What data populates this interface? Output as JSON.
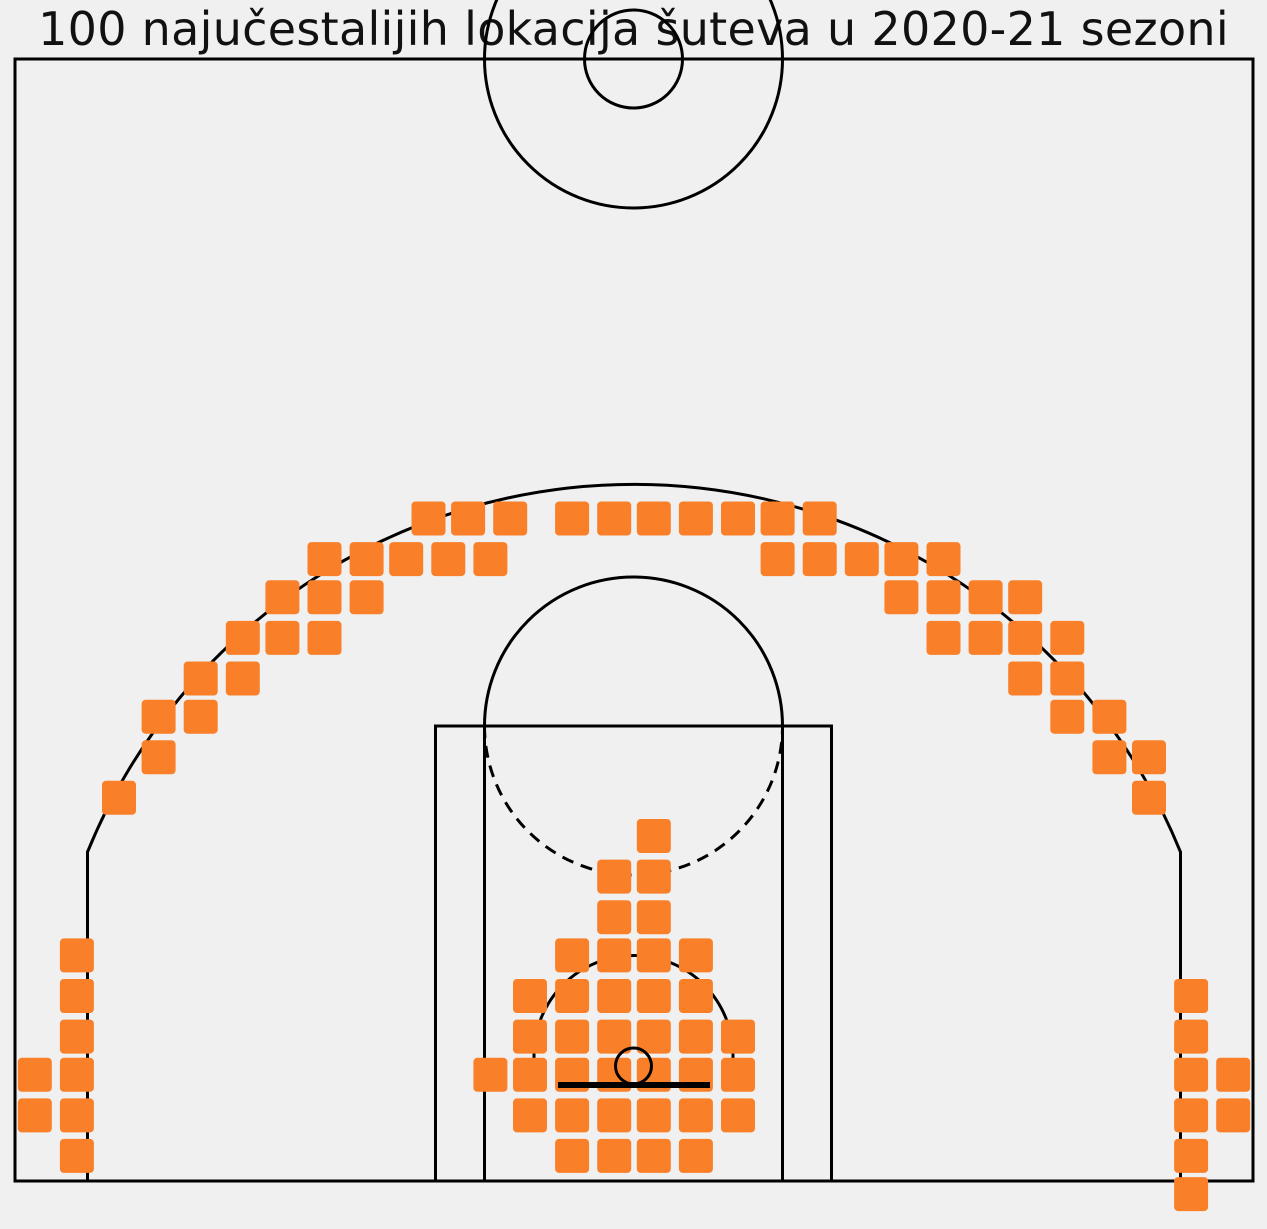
{
  "chart_data": {
    "type": "scatter",
    "title": "100 najučestalijih lokacija šuteva u 2020-21 sezoni",
    "xlabel": "",
    "ylabel": "",
    "marker": "rounded-square",
    "grid": false,
    "legend": "none",
    "xlim": [
      -250,
      250
    ],
    "ylim": [
      -47.5,
      422.5
    ],
    "bin_size_ft": 1.67,
    "colors": {
      "marker": "#f97f29",
      "court_lines": "#000000",
      "background": "#f0f0f0"
    },
    "points": [
      [
        -83,
        230
      ],
      [
        -67,
        230
      ],
      [
        -50,
        230
      ],
      [
        -25,
        230
      ],
      [
        -8,
        230
      ],
      [
        8,
        230
      ],
      [
        25,
        230
      ],
      [
        42,
        230
      ],
      [
        58,
        230
      ],
      [
        75,
        230
      ],
      [
        -125,
        213
      ],
      [
        -108,
        213
      ],
      [
        -92,
        213
      ],
      [
        -75,
        213
      ],
      [
        -58,
        213
      ],
      [
        58,
        213
      ],
      [
        75,
        213
      ],
      [
        92,
        213
      ],
      [
        108,
        213
      ],
      [
        125,
        213
      ],
      [
        -142,
        197
      ],
      [
        -125,
        197
      ],
      [
        -108,
        197
      ],
      [
        108,
        197
      ],
      [
        125,
        197
      ],
      [
        142,
        197
      ],
      [
        158,
        197
      ],
      [
        -158,
        180
      ],
      [
        -142,
        180
      ],
      [
        -125,
        180
      ],
      [
        125,
        180
      ],
      [
        142,
        180
      ],
      [
        158,
        180
      ],
      [
        175,
        180
      ],
      [
        -175,
        163
      ],
      [
        -158,
        163
      ],
      [
        158,
        163
      ],
      [
        175,
        163
      ],
      [
        -192,
        147
      ],
      [
        -175,
        147
      ],
      [
        175,
        147
      ],
      [
        192,
        147
      ],
      [
        -192,
        130
      ],
      [
        192,
        130
      ],
      [
        208,
        130
      ],
      [
        -208,
        113
      ],
      [
        208,
        113
      ],
      [
        8,
        97
      ],
      [
        -8,
        80
      ],
      [
        8,
        80
      ],
      [
        -8,
        63
      ],
      [
        8,
        63
      ],
      [
        -25,
        47
      ],
      [
        -8,
        47
      ],
      [
        8,
        47
      ],
      [
        25,
        47
      ],
      [
        -42,
        30
      ],
      [
        -25,
        30
      ],
      [
        -8,
        30
      ],
      [
        8,
        30
      ],
      [
        25,
        30
      ],
      [
        -42,
        13
      ],
      [
        -25,
        13
      ],
      [
        -8,
        13
      ],
      [
        8,
        13
      ],
      [
        25,
        13
      ],
      [
        42,
        13
      ],
      [
        -58,
        -3
      ],
      [
        -42,
        -3
      ],
      [
        -25,
        -3
      ],
      [
        -8,
        -3
      ],
      [
        8,
        -3
      ],
      [
        25,
        -3
      ],
      [
        42,
        -3
      ],
      [
        -42,
        -20
      ],
      [
        -25,
        -20
      ],
      [
        -8,
        -20
      ],
      [
        8,
        -20
      ],
      [
        25,
        -20
      ],
      [
        42,
        -20
      ],
      [
        -25,
        -37
      ],
      [
        -8,
        -37
      ],
      [
        8,
        -37
      ],
      [
        25,
        -37
      ],
      [
        -225,
        47
      ],
      [
        -225,
        30
      ],
      [
        -225,
        13
      ],
      [
        -242,
        -3
      ],
      [
        -225,
        -3
      ],
      [
        -242,
        -20
      ],
      [
        -225,
        -20
      ],
      [
        -225,
        -37
      ],
      [
        225,
        30
      ],
      [
        225,
        13
      ],
      [
        225,
        -3
      ],
      [
        242,
        -3
      ],
      [
        225,
        -20
      ],
      [
        242,
        -20
      ],
      [
        225,
        -37
      ],
      [
        225,
        -53
      ]
    ]
  }
}
